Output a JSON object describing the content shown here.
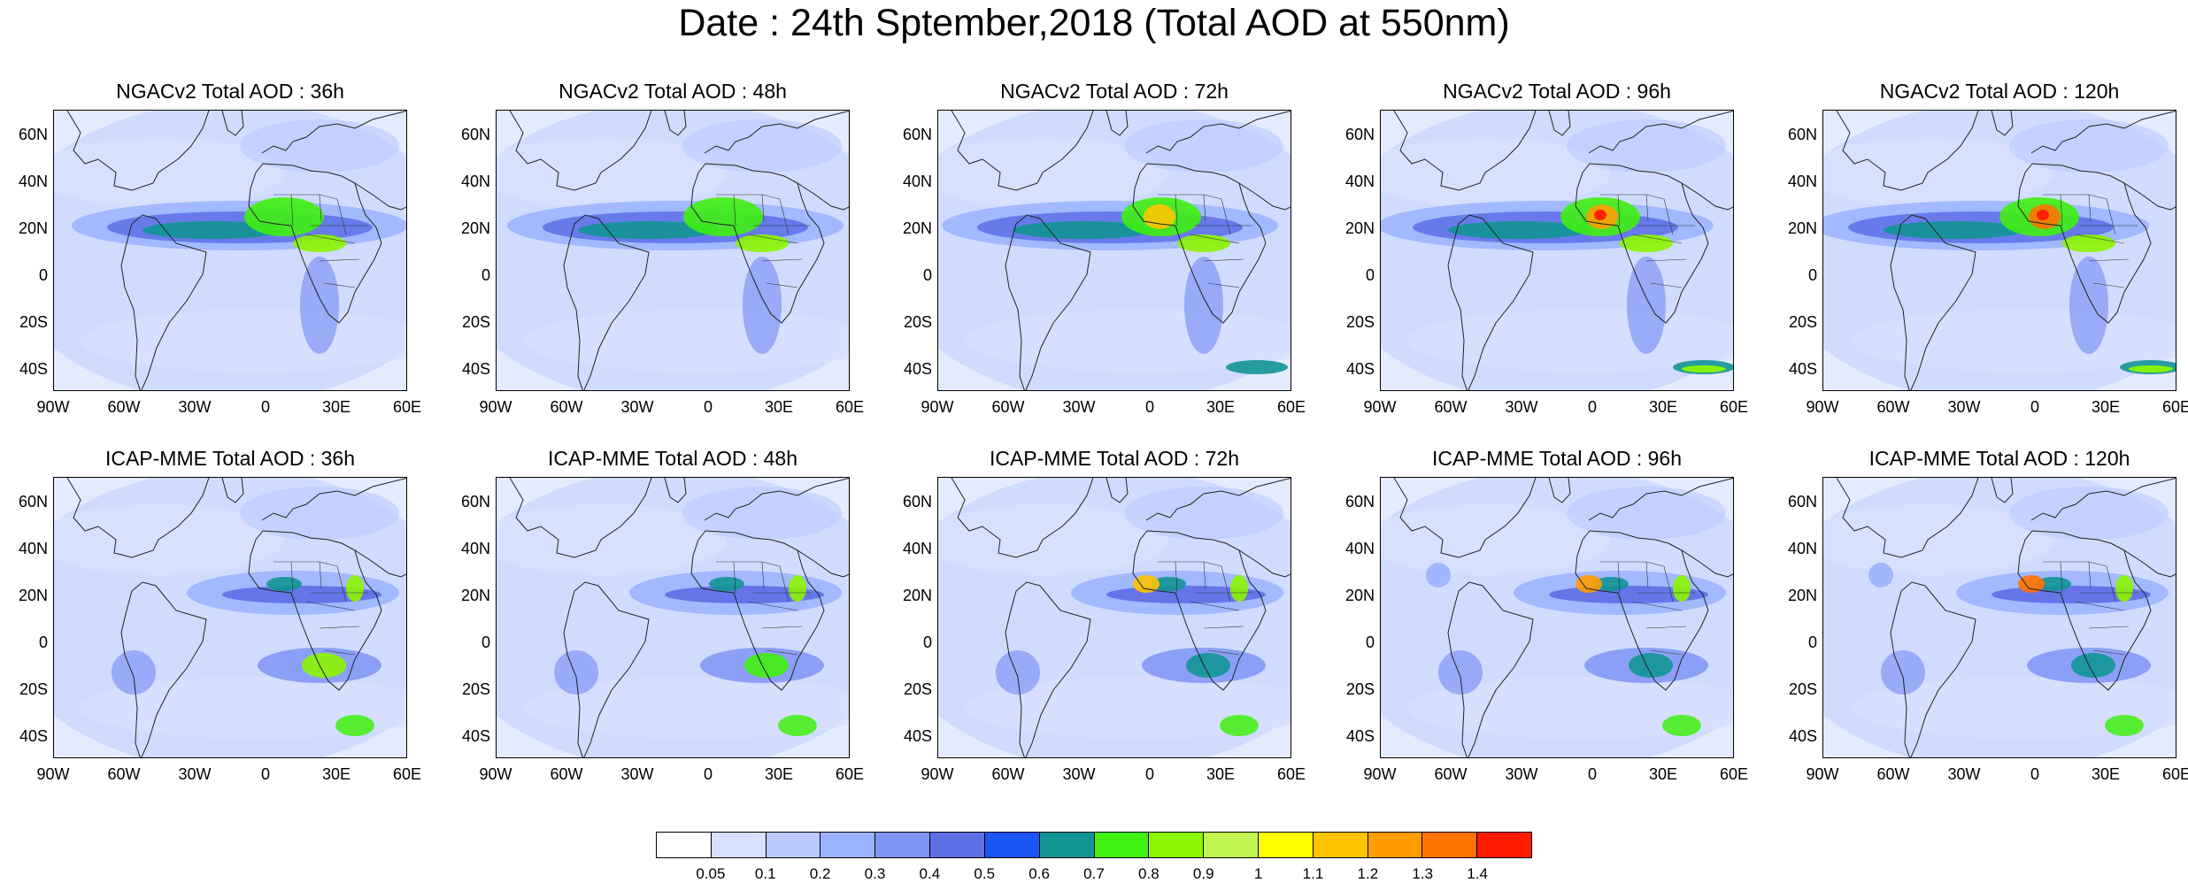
{
  "title": "Date : 24th Sptember,2018 (Total AOD at 550nm)",
  "panels": [
    {
      "title": "NGACv2 Total AOD : 36h"
    },
    {
      "title": "NGACv2 Total AOD : 48h"
    },
    {
      "title": "NGACv2 Total AOD : 72h"
    },
    {
      "title": "NGACv2 Total AOD : 96h"
    },
    {
      "title": "NGACv2 Total AOD : 120h"
    },
    {
      "title": "ICAP-MME Total AOD : 36h"
    },
    {
      "title": "ICAP-MME Total AOD : 48h"
    },
    {
      "title": "ICAP-MME Total AOD : 72h"
    },
    {
      "title": "ICAP-MME Total AOD : 96h"
    },
    {
      "title": "ICAP-MME Total AOD : 120h"
    }
  ],
  "lat_ticks": [
    "60N",
    "40N",
    "20N",
    "0",
    "20S",
    "40S"
  ],
  "lon_ticks": [
    "90W",
    "60W",
    "30W",
    "0",
    "30E",
    "60E"
  ],
  "colorbar": {
    "colors": [
      "#ffffff",
      "#d7e0ff",
      "#b9c9ff",
      "#9ab2ff",
      "#8094f5",
      "#5e6ee6",
      "#1a55f5",
      "#119595",
      "#40f011",
      "#8cf500",
      "#c3f550",
      "#ffff00",
      "#ffc400",
      "#ff9d00",
      "#ff7300",
      "#ff1a00"
    ],
    "labels": [
      "0.05",
      "0.1",
      "0.2",
      "0.3",
      "0.4",
      "0.5",
      "0.6",
      "0.7",
      "0.8",
      "0.9",
      "1",
      "1.1",
      "1.2",
      "1.3",
      "1.4"
    ]
  }
}
